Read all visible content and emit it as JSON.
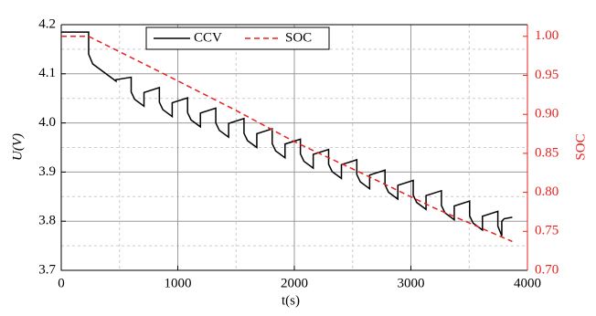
{
  "chart_data": {
    "type": "line",
    "xlabel": "t(s)",
    "ylabel": "U(V)",
    "y2label": "SOC",
    "xlim": [
      0,
      4000
    ],
    "xticks": [
      0,
      1000,
      2000,
      3000,
      4000
    ],
    "ylim": [
      3.7,
      4.2
    ],
    "yticks": [
      {
        "value": 3.7,
        "label": "3.7"
      },
      {
        "value": 3.8,
        "label": "3.8"
      },
      {
        "value": 3.9,
        "label": "3.9"
      },
      {
        "value": 4.0,
        "label": "4.0"
      },
      {
        "value": 4.1,
        "label": "4.1"
      },
      {
        "value": 4.2,
        "label": "4.2"
      }
    ],
    "y2lim": [
      0.7,
      1.015
    ],
    "y2ticks": [
      {
        "value": 0.7,
        "label": "0.70"
      },
      {
        "value": 0.75,
        "label": "0.75"
      },
      {
        "value": 0.8,
        "label": "0.80"
      },
      {
        "value": 0.85,
        "label": "0.85"
      },
      {
        "value": 0.9,
        "label": "0.90"
      },
      {
        "value": 0.95,
        "label": "0.95"
      },
      {
        "value": 1.0,
        "label": "1.00"
      }
    ],
    "xminorticks": [
      500,
      1500,
      2500,
      3500
    ],
    "yminorticks": [
      3.75,
      3.85,
      3.95,
      4.05,
      4.15
    ],
    "grid": true,
    "legend": "upper left",
    "series": [
      {
        "name": "CCV",
        "color": "#000000",
        "dash": "solid",
        "x": [
          0,
          235,
          235,
          270,
          470,
          470,
          600,
          600,
          630,
          710,
          710,
          842,
          842,
          872,
          952,
          952,
          1084,
          1084,
          1114,
          1194,
          1194,
          1326,
          1326,
          1356,
          1436,
          1436,
          1568,
          1568,
          1598,
          1678,
          1678,
          1810,
          1810,
          1840,
          1920,
          1920,
          2052,
          2052,
          2082,
          2162,
          2162,
          2294,
          2294,
          2324,
          2404,
          2404,
          2536,
          2536,
          2566,
          2646,
          2646,
          2778,
          2778,
          2808,
          2888,
          2888,
          3020,
          3020,
          3050,
          3130,
          3130,
          3262,
          3262,
          3292,
          3372,
          3372,
          3504,
          3504,
          3534,
          3614,
          3614,
          3746,
          3746,
          3780,
          3780,
          3800,
          3870
        ],
        "values": [
          4.185,
          4.185,
          4.14,
          4.12,
          4.085,
          4.088,
          4.093,
          4.063,
          4.048,
          4.034,
          4.062,
          4.072,
          4.042,
          4.027,
          4.013,
          4.041,
          4.051,
          4.021,
          4.006,
          3.992,
          4.02,
          4.03,
          4.0,
          3.985,
          3.971,
          3.999,
          4.009,
          3.979,
          3.964,
          3.95,
          3.978,
          3.988,
          3.958,
          3.943,
          3.929,
          3.957,
          3.967,
          3.937,
          3.922,
          3.908,
          3.936,
          3.946,
          3.916,
          3.901,
          3.887,
          3.915,
          3.925,
          3.895,
          3.88,
          3.866,
          3.894,
          3.904,
          3.874,
          3.859,
          3.845,
          3.873,
          3.883,
          3.853,
          3.838,
          3.824,
          3.852,
          3.862,
          3.832,
          3.817,
          3.803,
          3.831,
          3.841,
          3.811,
          3.796,
          3.782,
          3.81,
          3.82,
          3.79,
          3.77,
          3.8,
          3.805,
          3.808
        ]
      },
      {
        "name": "SOC",
        "color": "#e8211d",
        "dash": "dashed",
        "axis": "y2",
        "x": [
          0,
          235,
          800,
          1500,
          2000,
          2600,
          3200,
          3870
        ],
        "values": [
          1.0,
          1.0,
          0.958,
          0.905,
          0.865,
          0.823,
          0.78,
          0.737
        ]
      }
    ]
  }
}
